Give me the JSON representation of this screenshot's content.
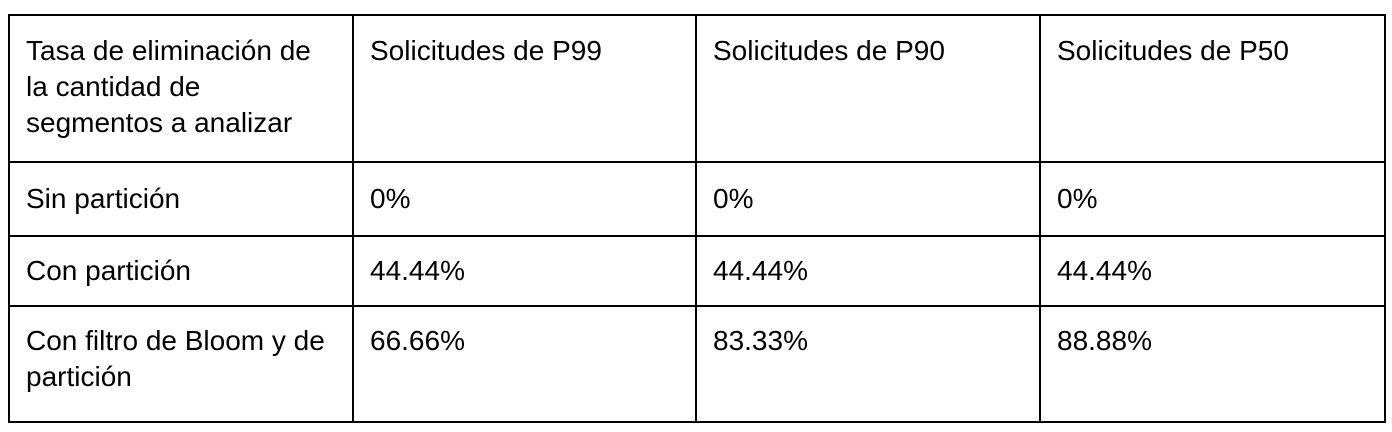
{
  "table": {
    "header": [
      "Tasa de eliminación de la cantidad de segmentos a analizar",
      "Solicitudes de P99",
      "Solicitudes de P90",
      "Solicitudes de P50"
    ],
    "rows": [
      [
        "Sin partición",
        "0%",
        "0%",
        "0%"
      ],
      [
        "Con partición",
        "44.44%",
        "44.44%",
        "44.44%"
      ],
      [
        "Con filtro de Bloom y de partición",
        "66.66%",
        "83.33%",
        "88.88%"
      ]
    ]
  }
}
